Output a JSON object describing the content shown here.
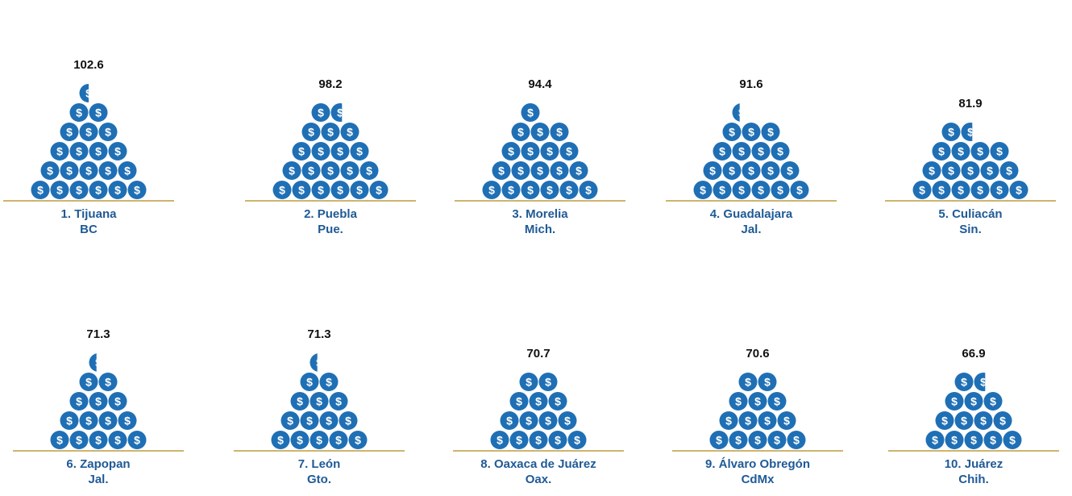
{
  "chart_data": {
    "type": "pictograph",
    "icon": "dollar-coin-icon",
    "colors": {
      "coin": "#1f6fb5",
      "coin_symbol": "#ffffff",
      "baseline": "#cdb46f",
      "label": "#1f5a96",
      "value": "#111111"
    },
    "items": [
      {
        "rank_city": "1. Tijuana",
        "state": "BC",
        "value": 102.6,
        "value_label": "102.6",
        "coins": 20.5
      },
      {
        "rank_city": "2. Puebla",
        "state": "Pue.",
        "value": 98.2,
        "value_label": "98.2",
        "coins": 19.6
      },
      {
        "rank_city": "3. Morelia",
        "state": "Mich.",
        "value": 94.4,
        "value_label": "94.4",
        "coins": 19
      },
      {
        "rank_city": "4. Guadalajara",
        "state": "Jal.",
        "value": 91.6,
        "value_label": "91.6",
        "coins": 18.4
      },
      {
        "rank_city": "5. Culiacán",
        "state": "Sin.",
        "value": 81.9,
        "value_label": "81.9",
        "coins": 16.6
      },
      {
        "rank_city": "6. Zapopan",
        "state": "Jal.",
        "value": 71.3,
        "value_label": "71.3",
        "coins": 14.4
      },
      {
        "rank_city": "7. León",
        "state": "Gto.",
        "value": 71.3,
        "value_label": "71.3",
        "coins": 14.4
      },
      {
        "rank_city": "8. Oaxaca de Juárez",
        "state": "Oax.",
        "value": 70.7,
        "value_label": "70.7",
        "coins": 14
      },
      {
        "rank_city": "9. Álvaro Obregón",
        "state": "CdMx",
        "value": 70.6,
        "value_label": "70.6",
        "coins": 14
      },
      {
        "rank_city": "10. Juárez",
        "state": "Chih.",
        "value": 66.9,
        "value_label": "66.9",
        "coins": 13.6
      }
    ]
  }
}
